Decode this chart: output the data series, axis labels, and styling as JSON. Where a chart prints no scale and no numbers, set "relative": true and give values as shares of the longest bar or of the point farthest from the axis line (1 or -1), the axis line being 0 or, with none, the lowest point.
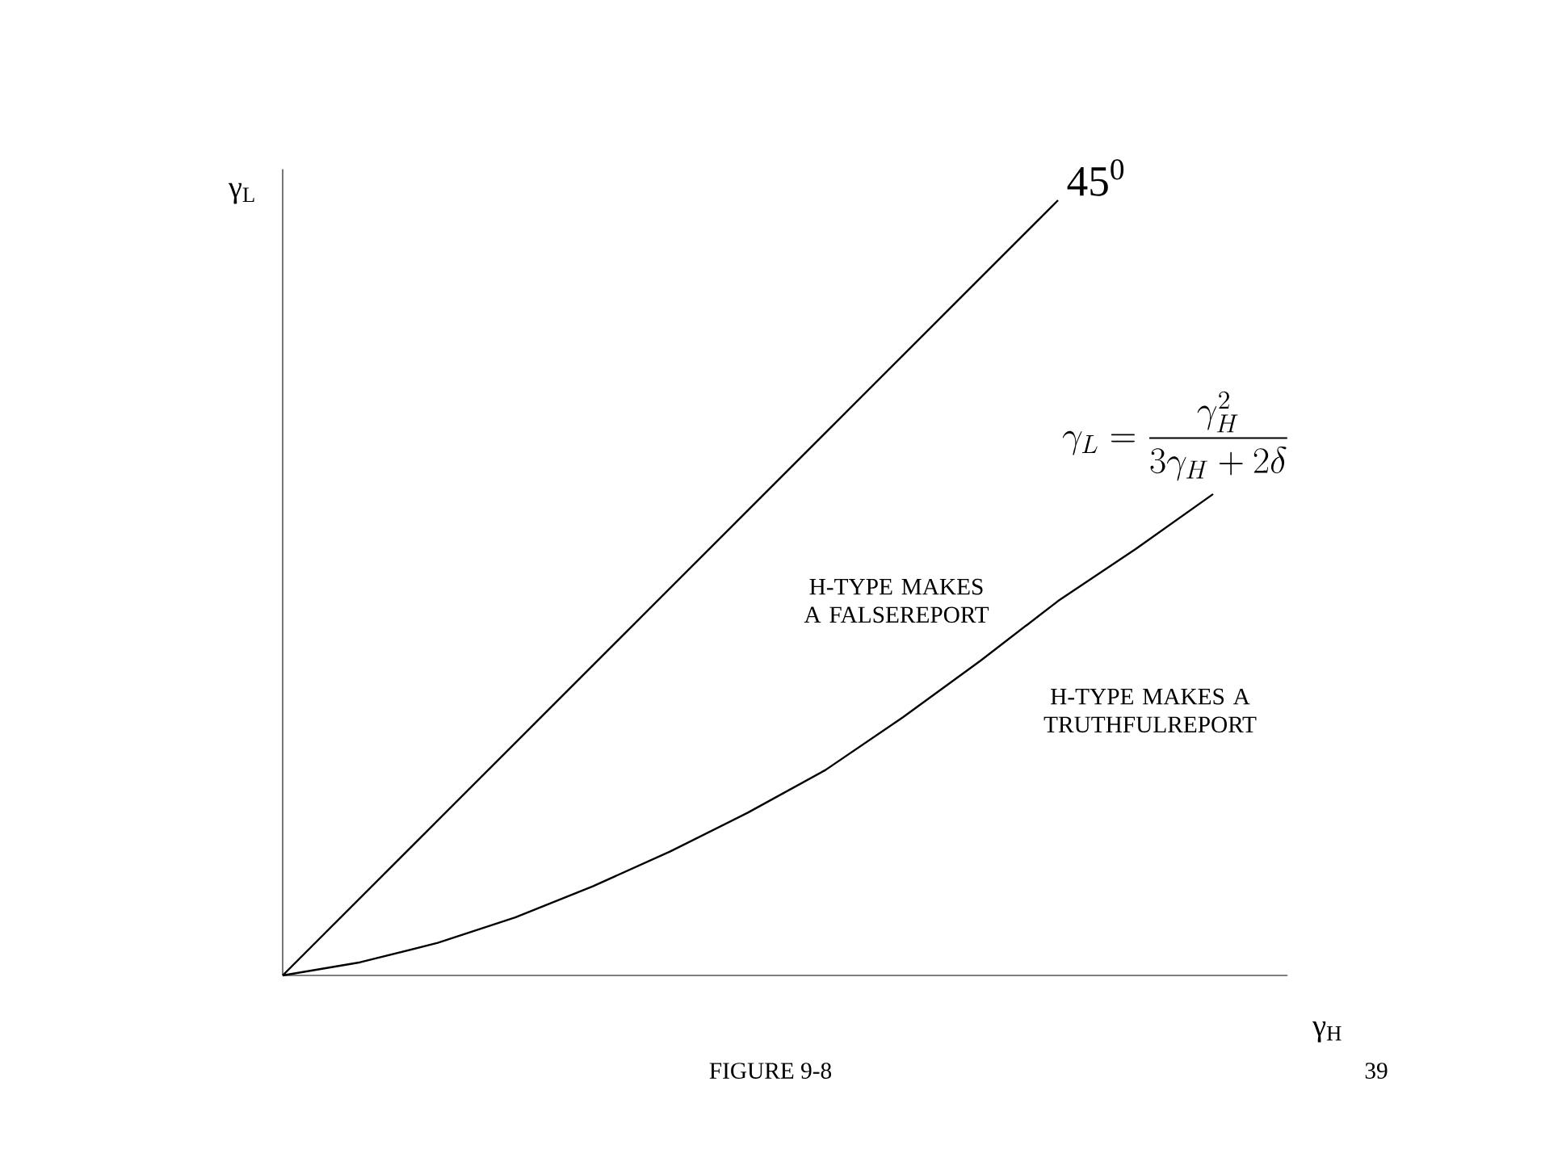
{
  "chart_data": {
    "type": "line",
    "relative": true,
    "xlabel": "γ$_{H}$",
    "ylabel": "γ$_{L}$",
    "categories": [
      null,
      null,
      null,
      null,
      null,
      null,
      null,
      null,
      null,
      null,
      null,
      null,
      null
    ],
    "series": [
      {
        "color": "#000000",
        "values": [
          0,
          0.1,
          0.2,
          0.3,
          0.4,
          0.5,
          0.6,
          0.7,
          0.8,
          0.9,
          1,
          null,
          null
        ]
      },
      {
        "color": "#000000",
        "values": [
          0,
          0.017,
          0.042,
          0.075,
          0.115,
          0.16,
          0.21,
          0.265,
          0.333,
          0.406,
          0.483,
          0.55,
          0.621
        ]
      }
    ],
    "annotations": [
      "45$^{0}$",
      "\\gamma_{L} = \\frac{\\gamma_{H}^{2}}{3\\gamma_{H} + 2\\delta}",
      "H-TYPE MAKES  A FALSEREPORT",
      "H-TYPE MAKES  A TRUTHFULREPORT",
      "FIGURE 9-8",
      "39"
    ]
  }
}
